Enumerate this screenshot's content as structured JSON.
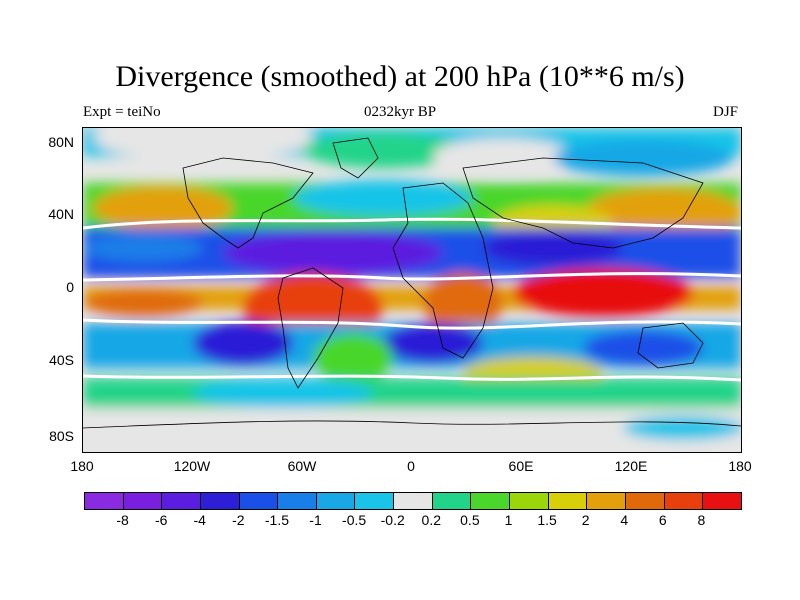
{
  "title": "Divergence (smoothed) at 200 hPa (10**6 m/s)",
  "subtitle_left": "Expt = teiNo",
  "subtitle_center": "0232kyr BP",
  "subtitle_right": "DJF",
  "lat_labels": [
    "80N",
    "40N",
    "0",
    "40S",
    "80S"
  ],
  "lon_labels": [
    "180",
    "120W",
    "60W",
    "0",
    "60E",
    "120E",
    "180"
  ],
  "colorbar": {
    "colors": [
      "#8a2be2",
      "#7a1fe0",
      "#5b1ee0",
      "#2c1fd6",
      "#1a4fe8",
      "#1a7ee8",
      "#19a7e6",
      "#19c4e8",
      "#e6e6e6",
      "#22d48a",
      "#4ad62a",
      "#9bd60a",
      "#d8cf08",
      "#e3a00a",
      "#e06a0a",
      "#e8400d",
      "#e81010"
    ],
    "labels": [
      "-8",
      "-6",
      "-4",
      "-2",
      "-1.5",
      "-1",
      "-0.5",
      "-0.2",
      "0.2",
      "0.5",
      "1",
      "1.5",
      "2",
      "4",
      "6",
      "8"
    ]
  }
}
